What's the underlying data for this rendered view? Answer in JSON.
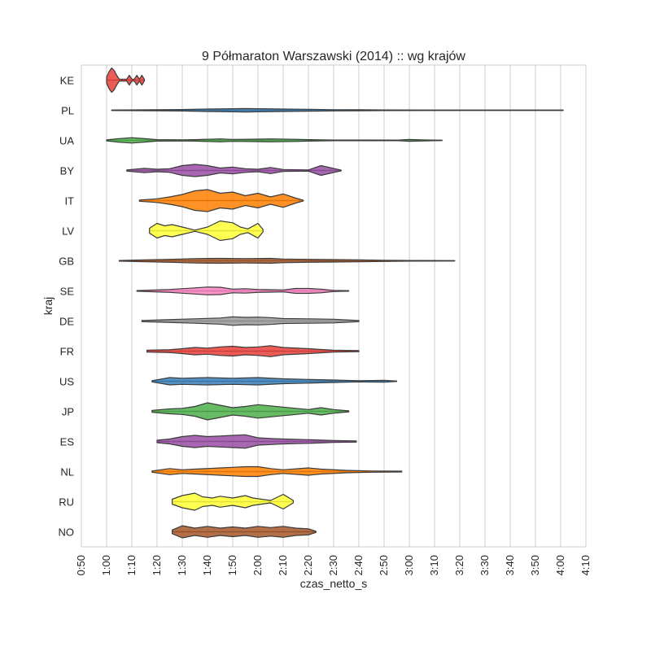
{
  "chart_data": {
    "type": "violin",
    "title": "9 Półmaraton Warszawski (2014) :: wg krajów",
    "xlabel": "czas_netto_s",
    "ylabel": "kraj",
    "orientation": "horizontal",
    "x_unit": "minutes",
    "xlim": [
      50,
      250
    ],
    "x_ticks": [
      50,
      60,
      70,
      80,
      90,
      100,
      110,
      120,
      130,
      140,
      150,
      160,
      170,
      180,
      190,
      200,
      210,
      220,
      230,
      240,
      250
    ],
    "x_tick_labels": [
      "0:50",
      "1:00",
      "1:10",
      "1:20",
      "1:30",
      "1:40",
      "1:50",
      "2:00",
      "2:10",
      "2:20",
      "2:30",
      "2:40",
      "2:50",
      "3:00",
      "3:10",
      "3:20",
      "3:30",
      "3:40",
      "3:50",
      "4:00",
      "4:10"
    ],
    "grid": "vertical",
    "categories": [
      "KE",
      "PL",
      "UA",
      "BY",
      "IT",
      "LV",
      "GB",
      "SE",
      "DE",
      "FR",
      "US",
      "JP",
      "ES",
      "NL",
      "RU",
      "NO"
    ],
    "series": [
      {
        "category": "KE",
        "color": "#e8403b",
        "min": 60,
        "max": 75,
        "density": [
          [
            60,
            0.25
          ],
          [
            61,
            0.7
          ],
          [
            62,
            1.0
          ],
          [
            63,
            0.8
          ],
          [
            64,
            0.4
          ],
          [
            65,
            0.08
          ],
          [
            66,
            0.08
          ],
          [
            67,
            0.08
          ],
          [
            68,
            0.08
          ],
          [
            69,
            0.4
          ],
          [
            70,
            0.08
          ],
          [
            71,
            0.08
          ],
          [
            72,
            0.4
          ],
          [
            73,
            0.08
          ],
          [
            74,
            0.4
          ],
          [
            75,
            0.05
          ]
        ]
      },
      {
        "category": "PL",
        "color": "#377eb8",
        "min": 62,
        "max": 241,
        "density": [
          [
            62,
            0.02
          ],
          [
            80,
            0.04
          ],
          [
            90,
            0.06
          ],
          [
            100,
            0.1
          ],
          [
            110,
            0.13
          ],
          [
            115,
            0.14
          ],
          [
            120,
            0.13
          ],
          [
            130,
            0.1
          ],
          [
            140,
            0.08
          ],
          [
            150,
            0.05
          ],
          [
            160,
            0.04
          ],
          [
            170,
            0.03
          ],
          [
            180,
            0.02
          ],
          [
            200,
            0.01
          ],
          [
            241,
            0.01
          ]
        ]
      },
      {
        "category": "UA",
        "color": "#4daf4a",
        "min": 60,
        "max": 193,
        "density": [
          [
            60,
            0.04
          ],
          [
            65,
            0.15
          ],
          [
            70,
            0.22
          ],
          [
            75,
            0.14
          ],
          [
            80,
            0.06
          ],
          [
            90,
            0.05
          ],
          [
            95,
            0.06
          ],
          [
            105,
            0.12
          ],
          [
            110,
            0.08
          ],
          [
            120,
            0.1
          ],
          [
            125,
            0.12
          ],
          [
            135,
            0.09
          ],
          [
            140,
            0.06
          ],
          [
            150,
            0.03
          ],
          [
            165,
            0.03
          ],
          [
            175,
            0.02
          ],
          [
            180,
            0.07
          ],
          [
            185,
            0.05
          ],
          [
            193,
            0.01
          ]
        ]
      },
      {
        "category": "BY",
        "color": "#984ea3",
        "min": 68,
        "max": 153,
        "density": [
          [
            68,
            0.05
          ],
          [
            75,
            0.18
          ],
          [
            80,
            0.1
          ],
          [
            85,
            0.15
          ],
          [
            90,
            0.4
          ],
          [
            95,
            0.5
          ],
          [
            100,
            0.4
          ],
          [
            105,
            0.2
          ],
          [
            110,
            0.28
          ],
          [
            115,
            0.15
          ],
          [
            120,
            0.1
          ],
          [
            125,
            0.25
          ],
          [
            130,
            0.08
          ],
          [
            140,
            0.05
          ],
          [
            145,
            0.4
          ],
          [
            153,
            0.03
          ]
        ]
      },
      {
        "category": "IT",
        "color": "#ff7f00",
        "min": 73,
        "max": 138,
        "density": [
          [
            73,
            0.05
          ],
          [
            80,
            0.15
          ],
          [
            85,
            0.3
          ],
          [
            90,
            0.5
          ],
          [
            95,
            0.8
          ],
          [
            100,
            0.9
          ],
          [
            105,
            0.6
          ],
          [
            110,
            0.7
          ],
          [
            115,
            0.4
          ],
          [
            120,
            0.6
          ],
          [
            125,
            0.3
          ],
          [
            130,
            0.55
          ],
          [
            135,
            0.2
          ],
          [
            138,
            0.03
          ]
        ]
      },
      {
        "category": "LV",
        "color": "#ffff33",
        "min": 77,
        "max": 122,
        "density": [
          [
            77,
            0.2
          ],
          [
            80,
            0.6
          ],
          [
            83,
            0.4
          ],
          [
            86,
            0.5
          ],
          [
            90,
            0.3
          ],
          [
            95,
            0.05
          ],
          [
            100,
            0.3
          ],
          [
            105,
            0.8
          ],
          [
            110,
            0.65
          ],
          [
            113,
            0.3
          ],
          [
            116,
            0.15
          ],
          [
            120,
            0.6
          ],
          [
            122,
            0.1
          ]
        ]
      },
      {
        "category": "GB",
        "color": "#a65628",
        "min": 65,
        "max": 198,
        "density": [
          [
            65,
            0.03
          ],
          [
            75,
            0.08
          ],
          [
            85,
            0.12
          ],
          [
            95,
            0.18
          ],
          [
            105,
            0.2
          ],
          [
            115,
            0.18
          ],
          [
            125,
            0.2
          ],
          [
            130,
            0.15
          ],
          [
            140,
            0.12
          ],
          [
            150,
            0.1
          ],
          [
            160,
            0.08
          ],
          [
            170,
            0.05
          ],
          [
            180,
            0.03
          ],
          [
            198,
            0.01
          ]
        ]
      },
      {
        "category": "SE",
        "color": "#f781bf",
        "min": 72,
        "max": 156,
        "density": [
          [
            72,
            0.03
          ],
          [
            85,
            0.12
          ],
          [
            95,
            0.25
          ],
          [
            100,
            0.32
          ],
          [
            105,
            0.3
          ],
          [
            110,
            0.15
          ],
          [
            115,
            0.18
          ],
          [
            120,
            0.12
          ],
          [
            125,
            0.1
          ],
          [
            130,
            0.08
          ],
          [
            135,
            0.2
          ],
          [
            140,
            0.2
          ],
          [
            145,
            0.15
          ],
          [
            150,
            0.05
          ],
          [
            156,
            0.02
          ]
        ]
      },
      {
        "category": "DE",
        "color": "#999999",
        "min": 74,
        "max": 160,
        "density": [
          [
            74,
            0.05
          ],
          [
            85,
            0.12
          ],
          [
            95,
            0.18
          ],
          [
            105,
            0.25
          ],
          [
            110,
            0.35
          ],
          [
            115,
            0.3
          ],
          [
            120,
            0.32
          ],
          [
            125,
            0.28
          ],
          [
            130,
            0.2
          ],
          [
            140,
            0.18
          ],
          [
            150,
            0.15
          ],
          [
            160,
            0.05
          ]
        ]
      },
      {
        "category": "FR",
        "color": "#e8403b",
        "min": 76,
        "max": 160,
        "density": [
          [
            76,
            0.08
          ],
          [
            85,
            0.12
          ],
          [
            90,
            0.2
          ],
          [
            95,
            0.3
          ],
          [
            100,
            0.25
          ],
          [
            105,
            0.35
          ],
          [
            110,
            0.4
          ],
          [
            115,
            0.3
          ],
          [
            120,
            0.35
          ],
          [
            125,
            0.45
          ],
          [
            130,
            0.3
          ],
          [
            140,
            0.2
          ],
          [
            150,
            0.08
          ],
          [
            160,
            0.04
          ]
        ]
      },
      {
        "category": "US",
        "color": "#377eb8",
        "min": 78,
        "max": 175,
        "density": [
          [
            78,
            0.05
          ],
          [
            85,
            0.3
          ],
          [
            90,
            0.25
          ],
          [
            100,
            0.3
          ],
          [
            110,
            0.25
          ],
          [
            120,
            0.3
          ],
          [
            130,
            0.2
          ],
          [
            140,
            0.15
          ],
          [
            150,
            0.1
          ],
          [
            160,
            0.05
          ],
          [
            170,
            0.08
          ],
          [
            175,
            0.02
          ]
        ]
      },
      {
        "category": "JP",
        "color": "#4daf4a",
        "min": 78,
        "max": 156,
        "density": [
          [
            78,
            0.08
          ],
          [
            85,
            0.2
          ],
          [
            90,
            0.25
          ],
          [
            95,
            0.4
          ],
          [
            100,
            0.7
          ],
          [
            105,
            0.5
          ],
          [
            110,
            0.3
          ],
          [
            115,
            0.4
          ],
          [
            120,
            0.55
          ],
          [
            125,
            0.45
          ],
          [
            135,
            0.25
          ],
          [
            140,
            0.15
          ],
          [
            145,
            0.3
          ],
          [
            150,
            0.15
          ],
          [
            156,
            0.04
          ]
        ]
      },
      {
        "category": "ES",
        "color": "#984ea3",
        "min": 80,
        "max": 159,
        "density": [
          [
            80,
            0.1
          ],
          [
            85,
            0.2
          ],
          [
            90,
            0.4
          ],
          [
            95,
            0.5
          ],
          [
            100,
            0.4
          ],
          [
            105,
            0.45
          ],
          [
            110,
            0.5
          ],
          [
            115,
            0.55
          ],
          [
            120,
            0.3
          ],
          [
            125,
            0.25
          ],
          [
            130,
            0.2
          ],
          [
            140,
            0.15
          ],
          [
            150,
            0.08
          ],
          [
            159,
            0.05
          ]
        ]
      },
      {
        "category": "NL",
        "color": "#ff7f00",
        "min": 78,
        "max": 177,
        "density": [
          [
            78,
            0.05
          ],
          [
            85,
            0.25
          ],
          [
            90,
            0.15
          ],
          [
            95,
            0.2
          ],
          [
            105,
            0.3
          ],
          [
            110,
            0.35
          ],
          [
            115,
            0.4
          ],
          [
            120,
            0.4
          ],
          [
            125,
            0.25
          ],
          [
            130,
            0.15
          ],
          [
            140,
            0.3
          ],
          [
            145,
            0.2
          ],
          [
            155,
            0.1
          ],
          [
            165,
            0.05
          ],
          [
            177,
            0.03
          ]
        ]
      },
      {
        "category": "RU",
        "color": "#ffff33",
        "min": 86,
        "max": 134,
        "density": [
          [
            86,
            0.2
          ],
          [
            90,
            0.5
          ],
          [
            95,
            0.7
          ],
          [
            98,
            0.4
          ],
          [
            102,
            0.3
          ],
          [
            105,
            0.45
          ],
          [
            110,
            0.3
          ],
          [
            115,
            0.5
          ],
          [
            118,
            0.3
          ],
          [
            125,
            0.1
          ],
          [
            130,
            0.6
          ],
          [
            134,
            0.1
          ]
        ]
      },
      {
        "category": "NO",
        "color": "#a65628",
        "min": 86,
        "max": 143,
        "density": [
          [
            86,
            0.15
          ],
          [
            90,
            0.5
          ],
          [
            95,
            0.3
          ],
          [
            100,
            0.45
          ],
          [
            105,
            0.3
          ],
          [
            110,
            0.4
          ],
          [
            115,
            0.3
          ],
          [
            120,
            0.45
          ],
          [
            125,
            0.35
          ],
          [
            130,
            0.45
          ],
          [
            135,
            0.3
          ],
          [
            140,
            0.25
          ],
          [
            143,
            0.05
          ]
        ]
      }
    ]
  }
}
